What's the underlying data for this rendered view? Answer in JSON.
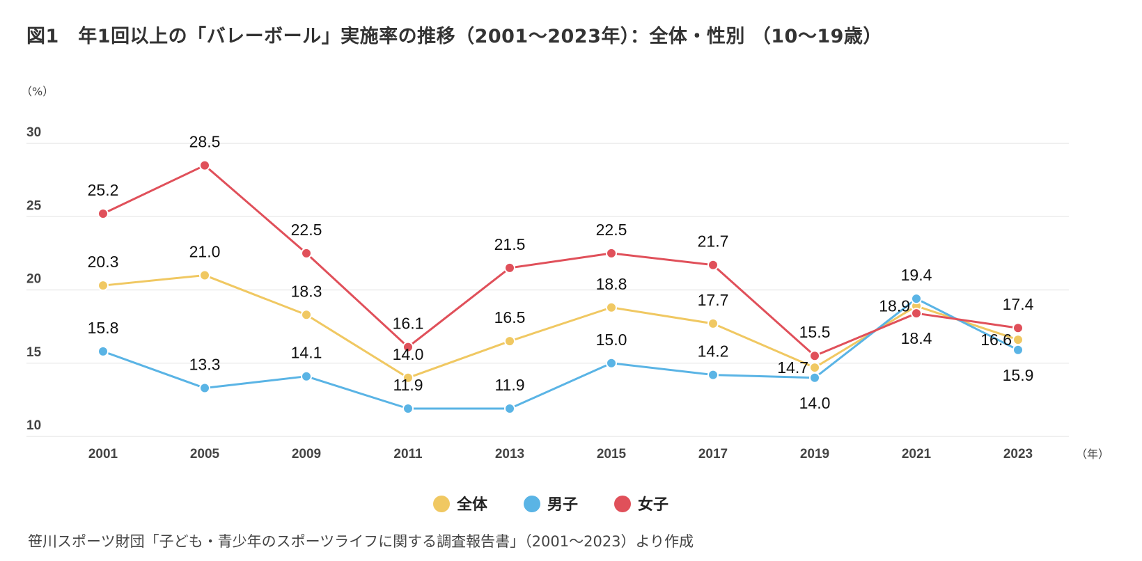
{
  "title": "図1　年1回以上の「バレーボール」実施率の推移（2001〜2023年）：全体・性別 （10〜19歳）",
  "source": "笹川スポーツ財団「子ども・青少年のスポーツライフに関する調査報告書」（2001〜2023）より作成",
  "chart_data": {
    "type": "line",
    "title": "図1　年1回以上の「バレーボール」実施率の推移（2001〜2023年）：全体・性別 （10〜19歳）",
    "xlabel": "（年）",
    "ylabel": "（%）",
    "categories": [
      "2001",
      "2005",
      "2009",
      "2011",
      "2013",
      "2015",
      "2017",
      "2019",
      "2021",
      "2023"
    ],
    "yticks": [
      10,
      15,
      20,
      25,
      30
    ],
    "ylim": [
      10,
      30
    ],
    "grid": true,
    "legend_position": "bottom",
    "series": [
      {
        "name": "全体",
        "color": "#f0c862",
        "values": [
          20.3,
          21.0,
          18.3,
          14.0,
          16.5,
          18.8,
          17.7,
          14.7,
          18.9,
          16.6
        ],
        "labels": [
          "20.3",
          "21.0",
          "18.3",
          "14.0",
          "16.5",
          "18.8",
          "17.7",
          "14.7",
          "18.9",
          "16.6"
        ]
      },
      {
        "name": "男子",
        "color": "#5ab4e5",
        "values": [
          15.8,
          13.3,
          14.1,
          11.9,
          11.9,
          15.0,
          14.2,
          14.0,
          19.4,
          15.9
        ],
        "labels": [
          "15.8",
          "13.3",
          "14.1",
          "11.9",
          "11.9",
          "15.0",
          "14.2",
          "14.0",
          "19.4",
          "15.9"
        ]
      },
      {
        "name": "女子",
        "color": "#e0505a",
        "values": [
          25.2,
          28.5,
          22.5,
          16.1,
          21.5,
          22.5,
          21.7,
          15.5,
          18.4,
          17.4
        ],
        "labels": [
          "25.2",
          "28.5",
          "22.5",
          "16.1",
          "21.5",
          "22.5",
          "21.7",
          "15.5",
          "18.4",
          "17.4"
        ]
      }
    ]
  }
}
